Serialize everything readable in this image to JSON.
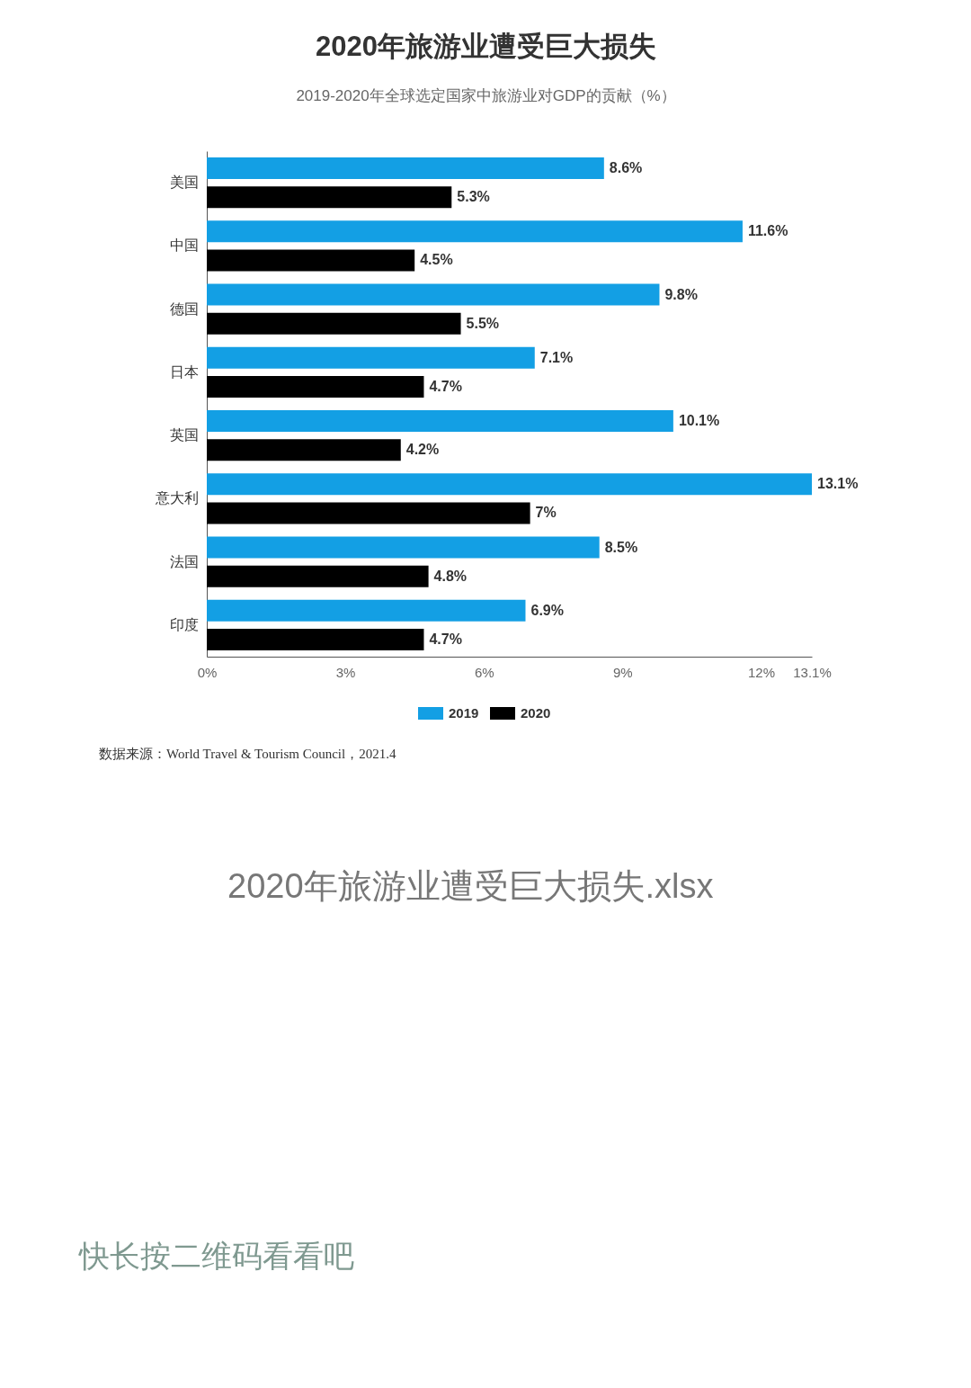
{
  "chart_data": {
    "type": "bar",
    "orientation": "horizontal",
    "title": "2020年旅游业遭受巨大损失",
    "subtitle": "2019-2020年全球选定国家中旅游业对GDP的贡献（%）",
    "categories": [
      "美国",
      "中国",
      "德国",
      "日本",
      "英国",
      "意大利",
      "法国",
      "印度"
    ],
    "series": [
      {
        "name": "2019",
        "color": "#139fe4",
        "values": [
          8.6,
          11.6,
          9.8,
          7.1,
          10.1,
          13.1,
          8.5,
          6.9
        ],
        "value_labels": [
          "8.6%",
          "11.6%",
          "9.8%",
          "7.1%",
          "10.1%",
          "13.1%",
          "8.5%",
          "6.9%"
        ]
      },
      {
        "name": "2020",
        "color": "#000000",
        "values": [
          5.3,
          4.5,
          5.5,
          4.7,
          4.2,
          7,
          4.8,
          4.7
        ],
        "value_labels": [
          "5.3%",
          "4.5%",
          "5.5%",
          "4.7%",
          "4.2%",
          "7%",
          "4.8%",
          "4.7%"
        ]
      }
    ],
    "xlim": [
      0,
      13.1
    ],
    "xticks": [
      {
        "value": 0,
        "label": "0%"
      },
      {
        "value": 3,
        "label": "3%"
      },
      {
        "value": 6,
        "label": "6%"
      },
      {
        "value": 9,
        "label": "9%"
      },
      {
        "value": 12,
        "label": "12%"
      },
      {
        "value": 13.1,
        "label": "13.1%"
      }
    ],
    "grid": false,
    "legend": "bottom",
    "annotations": [
      "数据来源：World Travel & Tourism Council，2021.4",
      "2020年旅游业遭受巨大损失.xlsx",
      "快长按二维码看看吧"
    ]
  }
}
